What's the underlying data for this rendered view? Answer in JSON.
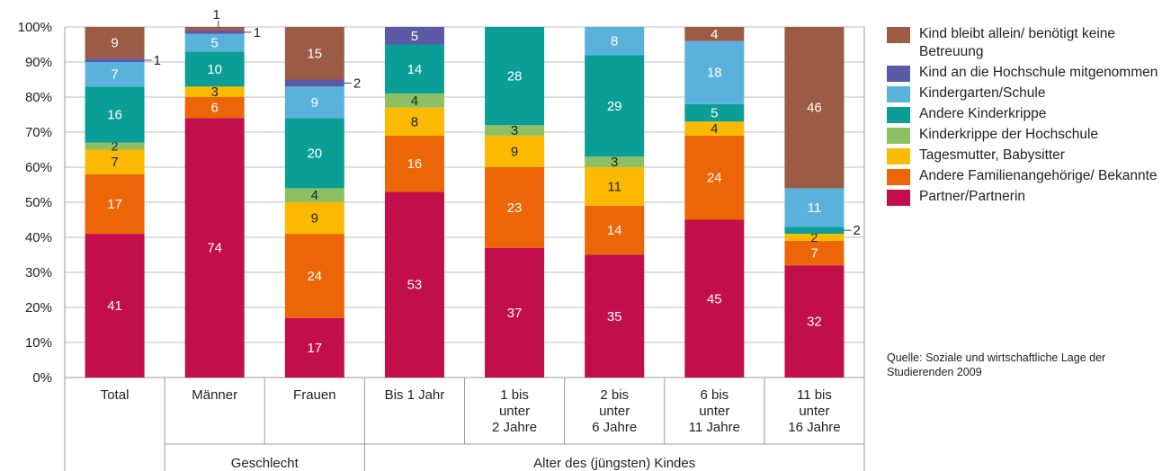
{
  "chart_data": {
    "type": "bar",
    "stacked": true,
    "ylim": [
      0,
      100
    ],
    "yticks": [
      "0%",
      "10%",
      "20%",
      "30%",
      "40%",
      "50%",
      "60%",
      "70%",
      "80%",
      "90%",
      "100%"
    ],
    "grid": true,
    "legend_position": "right",
    "categories": [
      [
        "Total"
      ],
      [
        "Männer"
      ],
      [
        "Frauen"
      ],
      [
        "Bis 1 Jahr"
      ],
      [
        "1 bis",
        "unter",
        "2 Jahre"
      ],
      [
        "2 bis",
        "unter",
        "6 Jahre"
      ],
      [
        "6 bis",
        "unter",
        "11 Jahre"
      ],
      [
        "11 bis",
        "unter",
        "16 Jahre"
      ]
    ],
    "groups": [
      {
        "label": "Geschlecht",
        "from": 1,
        "to": 2
      },
      {
        "label": "Alter des (jüngsten) Kindes",
        "from": 3,
        "to": 7
      }
    ],
    "series": [
      {
        "name": "Partner/Partnerin",
        "color": "#c20e4a",
        "values": [
          41,
          74,
          17,
          53,
          37,
          35,
          45,
          32
        ]
      },
      {
        "name": "Andere Familienangehörige/ Bekannte",
        "color": "#ec6608",
        "values": [
          17,
          6,
          24,
          16,
          23,
          14,
          24,
          7
        ]
      },
      {
        "name": "Tagesmutter, Babysitter",
        "color": "#fbba00",
        "values": [
          7,
          3,
          9,
          8,
          9,
          11,
          4,
          2
        ]
      },
      {
        "name": "Kinderkrippe der Hochschule",
        "color": "#8cc063",
        "values": [
          2,
          0,
          4,
          4,
          3,
          3,
          0,
          0
        ]
      },
      {
        "name": "Andere Kinderkrippe",
        "color": "#0a9e96",
        "values": [
          16,
          10,
          20,
          14,
          28,
          29,
          5,
          2
        ]
      },
      {
        "name": "Kindergarten/Schule",
        "color": "#5ab2dc",
        "values": [
          7,
          5,
          9,
          0,
          0,
          8,
          18,
          11
        ]
      },
      {
        "name": "Kind an die Hochschule mitgenommen",
        "color": "#5b5aa6",
        "values": [
          1,
          1,
          2,
          5,
          0,
          0,
          0,
          0
        ]
      },
      {
        "name": "Kind bleibt allein/ benötigt keine Betreuung",
        "color": "#9b5b44",
        "values": [
          9,
          1,
          15,
          0,
          0,
          0,
          4,
          46
        ]
      }
    ],
    "labels": [
      [
        "41",
        "17",
        "7",
        "2",
        "16",
        "7",
        "1",
        "9"
      ],
      [
        "74",
        "6",
        "3",
        "",
        "10",
        "5",
        "1",
        "1"
      ],
      [
        "17",
        "24",
        "9",
        "4",
        "20",
        "9",
        "2",
        "15"
      ],
      [
        "53",
        "16",
        "8",
        "4",
        "14",
        "",
        "5",
        ""
      ],
      [
        "37",
        "23",
        "9",
        "3",
        "28",
        "",
        "",
        ""
      ],
      [
        "35",
        "14",
        "11",
        "3",
        "29",
        "8",
        "",
        ""
      ],
      [
        "45",
        "24",
        "4",
        "",
        "5",
        "18",
        "",
        "4"
      ],
      [
        "32",
        "7",
        "2",
        "",
        "2",
        "11",
        "",
        "46"
      ]
    ],
    "source": "Quelle: Soziale und wirtschaftliche Lage der Studierenden 2009"
  },
  "legend": [
    {
      "label": "Kind bleibt allein/ benötigt keine Betreuung",
      "color": "#9b5b44"
    },
    {
      "label": "Kind an die Hochschule mitgenommen",
      "color": "#5b5aa6"
    },
    {
      "label": "Kindergarten/Schule",
      "color": "#5ab2dc"
    },
    {
      "label": "Andere Kinderkrippe",
      "color": "#0a9e96"
    },
    {
      "label": "Kinderkrippe der Hochschule",
      "color": "#8cc063"
    },
    {
      "label": "Tagesmutter, Babysitter",
      "color": "#fbba00"
    },
    {
      "label": "Andere Familienangehörige/ Bekannte",
      "color": "#ec6608"
    },
    {
      "label": "Partner/Partnerin",
      "color": "#c20e4a"
    }
  ],
  "source_text": "Quelle: Soziale und wirtschaftliche Lage der Studierenden 2009"
}
